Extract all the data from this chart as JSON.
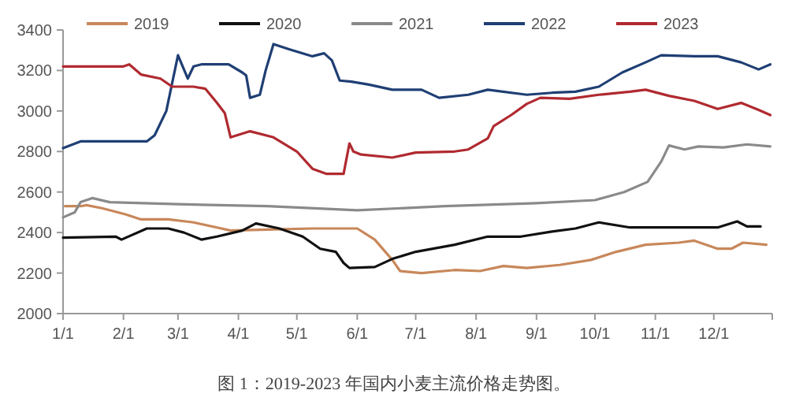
{
  "chart_data": {
    "type": "line",
    "legend": "top",
    "grid": false,
    "marker": "none",
    "line_style": "solid",
    "xlim": [
      "--01-01",
      "--12-31"
    ],
    "xticks": [
      {
        "value": "--01-01",
        "label": "1/1"
      },
      {
        "value": "--02-01",
        "label": "2/1"
      },
      {
        "value": "--03-01",
        "label": "3/1"
      },
      {
        "value": "--04-01",
        "label": "4/1"
      },
      {
        "value": "--05-01",
        "label": "5/1"
      },
      {
        "value": "--06-01",
        "label": "6/1"
      },
      {
        "value": "--07-01",
        "label": "7/1"
      },
      {
        "value": "--08-01",
        "label": "8/1"
      },
      {
        "value": "--09-01",
        "label": "9/1"
      },
      {
        "value": "--10-01",
        "label": "10/1"
      },
      {
        "value": "--11-01",
        "label": "11/1"
      },
      {
        "value": "--12-01",
        "label": "12/1"
      },
      {
        "value": "--12-31",
        "label": null
      }
    ],
    "ylim": [
      2000,
      3400
    ],
    "yticks": [
      2000,
      2200,
      2400,
      2600,
      2800,
      3000,
      3200,
      3400
    ],
    "annotations": [
      "图 1：2019-2023 年国内小麦主流价格走势图。"
    ],
    "series": [
      {
        "name": "2019",
        "color": "#c8875a",
        "x": [
          "--01-02",
          "--01-10",
          "--01-13",
          "--01-21",
          "--02-02",
          "--02-10",
          "--02-24",
          "--03-09",
          "--03-21",
          "--03-28",
          "--04-16",
          "--05-09",
          "--06-01",
          "--06-10",
          "--06-19",
          "--06-23",
          "--07-04",
          "--07-21",
          "--08-03",
          "--08-15",
          "--08-27",
          "--09-13",
          "--09-29",
          "--10-12",
          "--10-27",
          "--11-13",
          "--11-21",
          "--12-03",
          "--12-10",
          "--12-16",
          "--12-28"
        ],
        "values": [
          2530,
          2530,
          2535,
          2520,
          2490,
          2465,
          2465,
          2450,
          2425,
          2410,
          2415,
          2420,
          2420,
          2365,
          2265,
          2210,
          2200,
          2215,
          2210,
          2235,
          2225,
          2240,
          2265,
          2305,
          2340,
          2350,
          2360,
          2320,
          2320,
          2350,
          2340
        ]
      },
      {
        "name": "2020",
        "color": "#111111",
        "x": [
          "--01-01",
          "--01-28",
          "--01-31",
          "--02-13",
          "--02-24",
          "--03-04",
          "--03-13",
          "--03-21",
          "--04-03",
          "--04-10",
          "--04-22",
          "--05-04",
          "--05-13",
          "--05-21",
          "--05-25",
          "--05-28",
          "--06-10",
          "--06-19",
          "--07-01",
          "--07-21",
          "--08-07",
          "--08-24",
          "--09-09",
          "--09-21",
          "--10-03",
          "--10-19",
          "--11-06",
          "--12-03",
          "--12-13",
          "--12-18",
          "--12-25"
        ],
        "values": [
          2375,
          2380,
          2365,
          2420,
          2420,
          2400,
          2365,
          2380,
          2410,
          2445,
          2420,
          2380,
          2320,
          2305,
          2250,
          2225,
          2230,
          2270,
          2305,
          2340,
          2380,
          2380,
          2405,
          2420,
          2450,
          2425,
          2425,
          2425,
          2455,
          2430,
          2430
        ]
      },
      {
        "name": "2021",
        "color": "#8a8a8a",
        "x": [
          "--01-01",
          "--01-07",
          "--01-10",
          "--01-16",
          "--01-25",
          "--03-01",
          "--04-16",
          "--06-01",
          "--07-16",
          "--09-01",
          "--10-01",
          "--10-16",
          "--10-28",
          "--11-04",
          "--11-08",
          "--11-16",
          "--11-23",
          "--12-06",
          "--12-18",
          "--12-30"
        ],
        "values": [
          2475,
          2500,
          2550,
          2570,
          2550,
          2540,
          2530,
          2510,
          2530,
          2545,
          2560,
          2600,
          2650,
          2750,
          2830,
          2810,
          2825,
          2820,
          2835,
          2825
        ]
      },
      {
        "name": "2022",
        "color": "#1f3f74",
        "x": [
          "--01-01",
          "--01-10",
          "--01-16",
          "--02-13",
          "--02-17",
          "--02-23",
          "--03-01",
          "--03-06",
          "--03-09",
          "--03-13",
          "--03-27",
          "--04-03",
          "--04-05",
          "--04-07",
          "--04-12",
          "--04-15",
          "--04-19",
          "--04-27",
          "--05-09",
          "--05-15",
          "--05-19",
          "--05-23",
          "--05-29",
          "--06-07",
          "--06-19",
          "--07-04",
          "--07-13",
          "--07-28",
          "--08-07",
          "--08-27",
          "--09-09",
          "--09-21",
          "--10-03",
          "--10-15",
          "--10-27",
          "--11-04",
          "--11-21",
          "--12-03",
          "--12-15",
          "--12-24",
          "--12-30"
        ],
        "values": [
          2817,
          2850,
          2850,
          2850,
          2880,
          3000,
          3275,
          3160,
          3220,
          3230,
          3230,
          3190,
          3175,
          3065,
          3080,
          3200,
          3330,
          3305,
          3270,
          3285,
          3250,
          3150,
          3145,
          3130,
          3105,
          3105,
          3065,
          3080,
          3105,
          3080,
          3090,
          3095,
          3120,
          3190,
          3240,
          3275,
          3270,
          3270,
          3240,
          3205,
          3230
        ]
      },
      {
        "name": "2023",
        "color": "#b02a30",
        "x": [
          "--01-01",
          "--02-01",
          "--02-04",
          "--02-10",
          "--02-20",
          "--02-26",
          "--03-09",
          "--03-15",
          "--03-21",
          "--03-25",
          "--03-28",
          "--04-07",
          "--04-19",
          "--05-01",
          "--05-09",
          "--05-16",
          "--05-25",
          "--05-28",
          "--05-30",
          "--06-03",
          "--06-19",
          "--07-01",
          "--07-21",
          "--07-28",
          "--08-07",
          "--08-10",
          "--08-19",
          "--08-27",
          "--09-03",
          "--09-18",
          "--10-03",
          "--10-19",
          "--10-27",
          "--11-08",
          "--11-21",
          "--12-03",
          "--12-15",
          "--12-24",
          "--12-30"
        ],
        "values": [
          3220,
          3220,
          3230,
          3180,
          3160,
          3120,
          3120,
          3110,
          3040,
          2990,
          2870,
          2900,
          2870,
          2800,
          2715,
          2690,
          2690,
          2840,
          2800,
          2785,
          2770,
          2795,
          2800,
          2810,
          2865,
          2925,
          2980,
          3035,
          3065,
          3060,
          3080,
          3095,
          3105,
          3075,
          3050,
          3010,
          3040,
          3005,
          2980
        ]
      }
    ]
  }
}
